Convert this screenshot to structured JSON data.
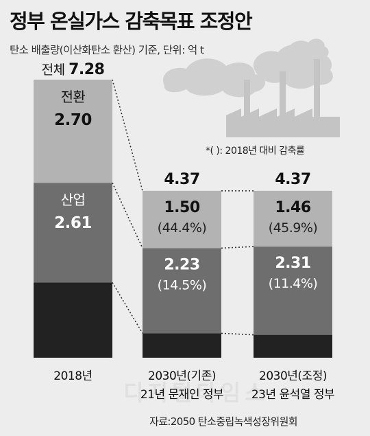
{
  "title": "정부 온실가스 감축목표 조정안",
  "subtitle": "탄소 배출량(이산화탄소 환산) 기준, 단위: 억 t",
  "note": "*(   ): 2018년 대비 감축률",
  "source": "자료:2050 탄소중립녹색성장위원회",
  "watermark": "디지털타임스",
  "colors": {
    "전환": "#b3b3b3",
    "산업": "#6e6e6e",
    "other": "#222222",
    "background": "#ededed",
    "smoke": "#d0d0d0",
    "factory": "#c4c4c4"
  },
  "chart_data": {
    "type": "bar",
    "stacked": true,
    "ylim": [
      0,
      7.28
    ],
    "categories": [
      "2018년",
      "2030년(기존)\n21년 문재인 정부",
      "2030년(조정)\n23년 윤석열 정부"
    ],
    "category_lines": [
      [
        "2018년"
      ],
      [
        "2030년(기존)",
        "21년 문재인 정부"
      ],
      [
        "2030년(조정)",
        "23년 윤석열 정부"
      ]
    ],
    "totals": [
      7.28,
      4.37,
      4.37
    ],
    "total_labels": [
      "전체 7.28",
      "4.37",
      "4.37"
    ],
    "series": [
      {
        "name": "전환",
        "values": [
          2.7,
          1.5,
          1.46
        ],
        "value_labels": [
          "2.70",
          "1.50",
          "1.46"
        ],
        "pct_labels": [
          "",
          "(44.4%)",
          "(45.9%)"
        ]
      },
      {
        "name": "산업",
        "values": [
          2.61,
          2.23,
          2.31
        ],
        "value_labels": [
          "2.61",
          "2.23",
          "2.31"
        ],
        "pct_labels": [
          "",
          "(14.5%)",
          "(11.4%)"
        ]
      },
      {
        "name": "",
        "values": [
          1.97,
          0.64,
          0.6
        ],
        "value_labels": [
          "",
          "",
          ""
        ],
        "pct_labels": [
          "",
          "",
          ""
        ]
      }
    ]
  }
}
